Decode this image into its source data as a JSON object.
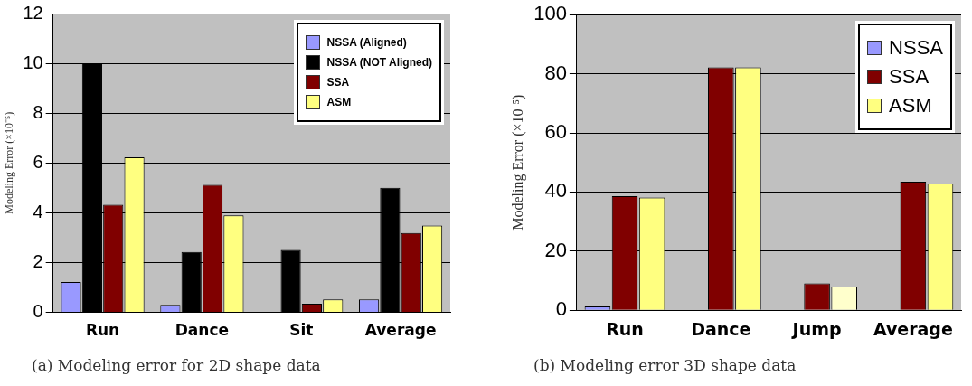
{
  "chart_data": [
    {
      "type": "bar",
      "ylabel": "Modeling Error (×10⁻⁵)",
      "categories": [
        "Run",
        "Dance",
        "Sit",
        "Average"
      ],
      "ylim": [
        0,
        12
      ],
      "yticks": [
        0,
        2,
        4,
        6,
        8,
        10,
        12
      ],
      "grid": "y",
      "legend": "top right",
      "series": [
        {
          "name": "NSSA (Aligned)",
          "color": "#9999ff",
          "values": [
            1.22,
            0.3,
            null,
            0.52
          ]
        },
        {
          "name": "NSSA (NOT Aligned)",
          "color": "#000000",
          "values": [
            10,
            2.43,
            2.51,
            5.0
          ]
        },
        {
          "name": "SSA",
          "color": "#800000",
          "values": [
            4.32,
            5.12,
            0.35,
            3.19
          ]
        },
        {
          "name": "ASM",
          "color": "#ffff80",
          "values": [
            6.23,
            3.9,
            0.52,
            3.49
          ]
        }
      ],
      "annotations": [
        "(a) Modeling error for 2D shape data"
      ]
    },
    {
      "type": "bar",
      "ylabel": "Modeling Error (×10⁻⁵)",
      "categories": [
        "Run",
        "Dance",
        "Jump",
        "Average"
      ],
      "ylim": [
        0,
        100
      ],
      "yticks": [
        0,
        20,
        40,
        60,
        80,
        100
      ],
      "grid": "y",
      "legend": "top right",
      "series": [
        {
          "name": "NSSA",
          "color": "#9999ff",
          "values": [
            1.3,
            null,
            null,
            null
          ]
        },
        {
          "name": "SSA",
          "color": "#800000",
          "values": [
            38.6,
            82.2,
            9.1,
            43.5
          ]
        },
        {
          "name": "ASM",
          "color": "#ffff80",
          "colors": [
            "#ffff80",
            "#ffff80",
            "#ffffcc",
            "#ffff80"
          ],
          "values": [
            38.1,
            82.2,
            8.0,
            42.9
          ]
        }
      ],
      "annotations": [
        "(b) Modeling error 3D shape data"
      ]
    }
  ]
}
